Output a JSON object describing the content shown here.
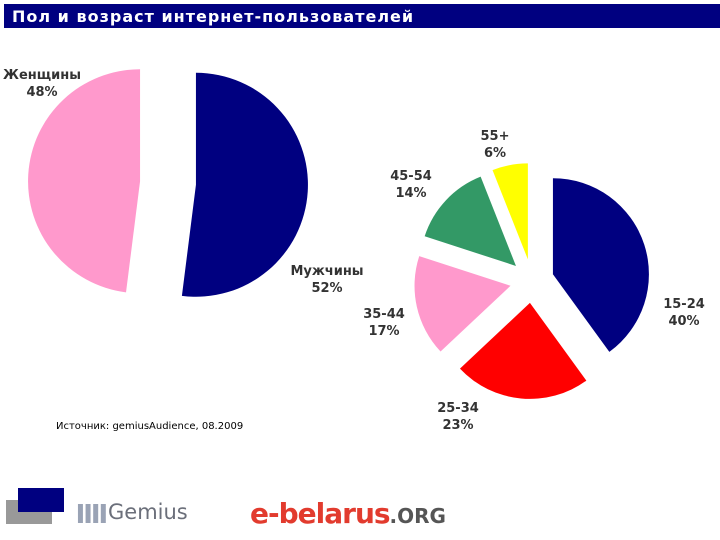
{
  "title": "Пол и возраст интернет-пользователей",
  "source": "Источник: gemiusAudience, 08.2009",
  "logos": {
    "gemius": "Gemius",
    "ebelarus_main": "e-belarus",
    "ebelarus_suffix": ".ORG"
  },
  "colors": {
    "title_bar": "#000080",
    "navy": "#000080",
    "pink": "#ff99cc",
    "red": "#ff0000",
    "green": "#339966",
    "yellow": "#ffff00"
  },
  "chart_data": [
    {
      "type": "pie",
      "title": "",
      "slices": [
        {
          "label": "Мужчины",
          "value": 52,
          "value_label": "52%",
          "color": "#000080"
        },
        {
          "label": "Женщины",
          "value": 48,
          "value_label": "48%",
          "color": "#ff99cc"
        }
      ]
    },
    {
      "type": "pie",
      "title": "",
      "slices": [
        {
          "label": "15-24",
          "value": 40,
          "value_label": "40%",
          "color": "#000080"
        },
        {
          "label": "25-34",
          "value": 23,
          "value_label": "23%",
          "color": "#ff0000"
        },
        {
          "label": "35-44",
          "value": 17,
          "value_label": "17%",
          "color": "#ff99cc"
        },
        {
          "label": "45-54",
          "value": 14,
          "value_label": "14%",
          "color": "#339966"
        },
        {
          "label": "55+",
          "value": 6,
          "value_label": "6%",
          "color": "#ffff00"
        }
      ]
    }
  ]
}
